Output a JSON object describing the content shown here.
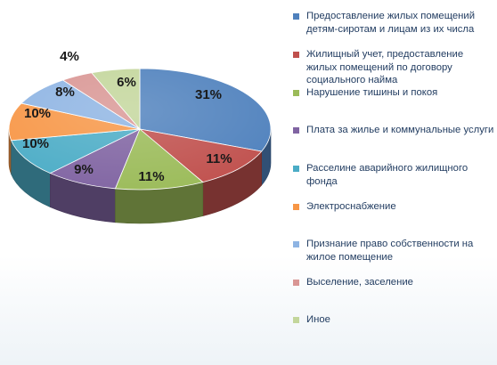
{
  "chart_data": {
    "type": "pie",
    "three_d": true,
    "title": "",
    "legend_placement": "right",
    "slices": [
      {
        "label": "Предоставление жилых помещений детям-сиротам и лицам из их числа",
        "value": 31,
        "value_label": "31%",
        "color": "#4f81bd"
      },
      {
        "label": "Жилищный учет, предоставление жилых помещений по договору социального найма",
        "value": 11,
        "value_label": "11%",
        "color": "#c0504d"
      },
      {
        "label": "Нарушение тишины и покоя",
        "value": 11,
        "value_label": "11%",
        "color": "#9bbb59"
      },
      {
        "label": "Плата за жилье и коммунальные услуги",
        "value": 9,
        "value_label": "9%",
        "color": "#8064a2"
      },
      {
        "label": "Расселине аварийного жилищного фонда",
        "value": 10,
        "value_label": "10%",
        "color": "#4bacc6"
      },
      {
        "label": "Электроснабжение",
        "value": 10,
        "value_label": "10%",
        "color": "#f79646"
      },
      {
        "label": "Признание право собственности на жилое помещение",
        "value": 8,
        "value_label": "8%",
        "color": "#8eb4e3"
      },
      {
        "label": "Выселение, заселение",
        "value": 4,
        "value_label": "4%",
        "color": "#d99694"
      },
      {
        "label": "Иное",
        "value": 6,
        "value_label": "6%",
        "color": "#c3d69b"
      }
    ]
  }
}
